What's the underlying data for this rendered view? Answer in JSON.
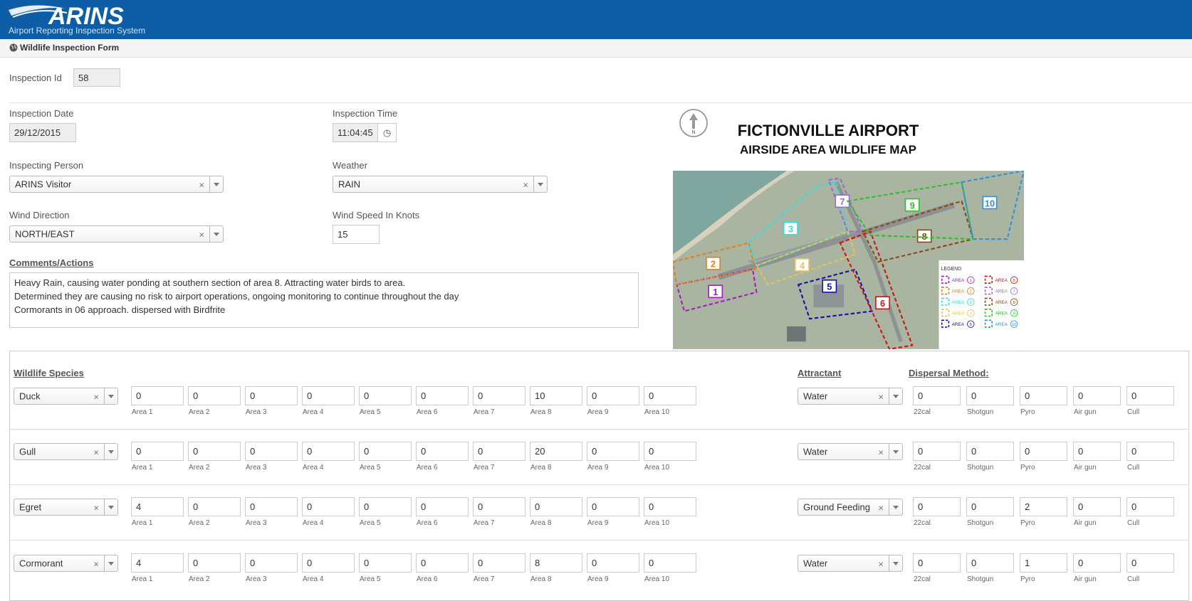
{
  "header": {
    "logo": "ARINS",
    "tagline": "Airport Reporting Inspection System"
  },
  "form": {
    "title": "Wildlife Inspection Form",
    "inspection_id": {
      "label": "Inspection Id",
      "value": 58
    },
    "inspection_date": {
      "label": "Inspection Date",
      "value": "29/12/2015"
    },
    "inspection_time": {
      "label": "Inspection Time",
      "value": "11:04:45"
    },
    "inspecting_person": {
      "label": "Inspecting Person",
      "value": "ARINS Visitor"
    },
    "weather": {
      "label": "Weather",
      "value": "RAIN"
    },
    "wind_direction": {
      "label": "Wind Direction",
      "value": "NORTH/EAST"
    },
    "wind_speed": {
      "label": "Wind Speed In Knots",
      "value": 15
    },
    "comments": {
      "label": "Comments/Actions",
      "lines": [
        "Heavy Rain, causing water ponding at southern section of area 8. Attracting water birds to area.",
        "Determined they are causing no risk to airport operations, ongoing monitoring to continue throughout the day",
        "Cormorants in 06 approach. dispersed with Birdfrite"
      ]
    }
  },
  "map": {
    "compass": "N",
    "title": "FICTIONVILLE AIRPORT",
    "subtitle": "AIRSIDE AREA WILDLIFE MAP",
    "legend_title": "LEGEND",
    "legend_word": "AREA",
    "areas": [
      {
        "label": "1",
        "color": "#a020c0"
      },
      {
        "label": "2",
        "color": "#e08020"
      },
      {
        "label": "3",
        "color": "#30dede"
      },
      {
        "label": "4",
        "color": "#e6c35a"
      },
      {
        "label": "5",
        "color": "#1414a8"
      },
      {
        "label": "6",
        "color": "#d01414"
      },
      {
        "label": "7",
        "color": "#9a6ad0"
      },
      {
        "label": "8",
        "color": "#8b4a13"
      },
      {
        "label": "9",
        "color": "#2ec02e"
      },
      {
        "label": "10",
        "color": "#3090e0"
      }
    ]
  },
  "wildlife": {
    "species_label": "Wildlife Species",
    "attractant_label": "Attractant",
    "dispersal_label": "Dispersal Method:",
    "area_labels": [
      "Area 1",
      "Area 2",
      "Area 3",
      "Area 4",
      "Area 5",
      "Area 6",
      "Area 7",
      "Area 8",
      "Area 9",
      "Area 10"
    ],
    "dispersal_labels": [
      "22cal",
      "Shotgun",
      "Pyro",
      "Air gun",
      "Cull"
    ],
    "rows": [
      {
        "species": "Duck",
        "counts": [
          0,
          0,
          0,
          0,
          0,
          0,
          0,
          10,
          0,
          0
        ],
        "attractant": "Water",
        "dispersal": [
          0,
          0,
          0,
          0,
          0
        ]
      },
      {
        "species": "Gull",
        "counts": [
          0,
          0,
          0,
          0,
          0,
          0,
          0,
          20,
          0,
          0
        ],
        "attractant": "Water",
        "dispersal": [
          0,
          0,
          0,
          0,
          0
        ]
      },
      {
        "species": "Egret",
        "counts": [
          4,
          0,
          0,
          0,
          0,
          0,
          0,
          0,
          0,
          0
        ],
        "attractant": "Ground Feeding",
        "dispersal": [
          0,
          0,
          2,
          0,
          0
        ]
      },
      {
        "species": "Cormorant",
        "counts": [
          4,
          0,
          0,
          0,
          0,
          0,
          0,
          8,
          0,
          0
        ],
        "attractant": "Water",
        "dispersal": [
          0,
          0,
          1,
          0,
          0
        ]
      }
    ]
  }
}
